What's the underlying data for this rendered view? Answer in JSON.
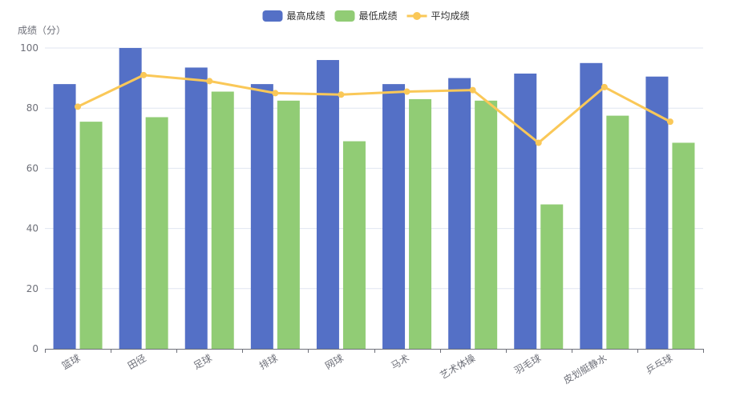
{
  "chart_data": {
    "type": "bar",
    "title": "",
    "xlabel": "",
    "ylabel": "成绩（分）",
    "ylim": [
      0,
      100
    ],
    "yticks": [
      0,
      20,
      40,
      60,
      80,
      100
    ],
    "grid": true,
    "legend_position": "top-center",
    "categories": [
      "篮球",
      "田径",
      "足球",
      "排球",
      "网球",
      "马术",
      "艺术体操",
      "羽毛球",
      "皮划艇静水",
      "乒乓球"
    ],
    "series": [
      {
        "name": "最高成绩",
        "type": "bar",
        "color": "#5470c6",
        "values": [
          88,
          100,
          93.5,
          88,
          96,
          88,
          90,
          91.5,
          95,
          90.5
        ]
      },
      {
        "name": "最低成绩",
        "type": "bar",
        "color": "#91cc75",
        "values": [
          75.5,
          77,
          85.5,
          82.5,
          69,
          83,
          82.5,
          48,
          77.5,
          68.5
        ]
      },
      {
        "name": "平均成绩",
        "type": "line",
        "color": "#fac858",
        "values": [
          80.5,
          91,
          89,
          85,
          84.5,
          85.5,
          86,
          68.5,
          87,
          75.5
        ]
      }
    ]
  }
}
